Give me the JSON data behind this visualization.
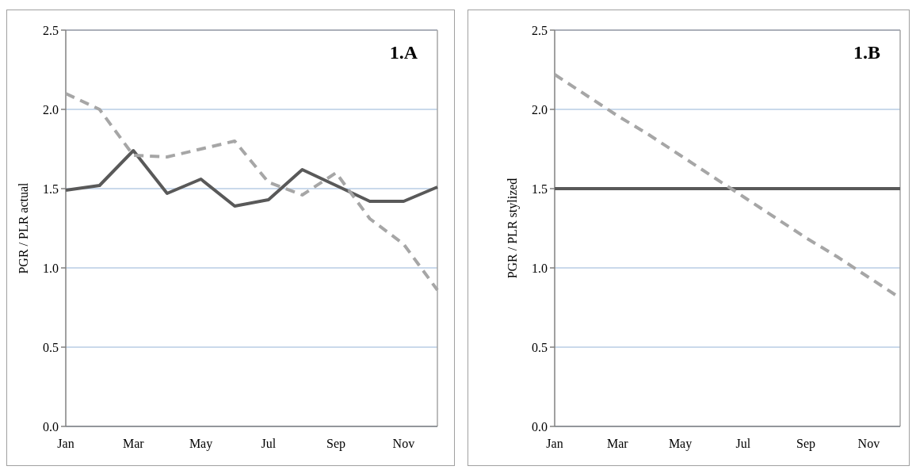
{
  "chart_data": [
    {
      "type": "line",
      "title": "1.A",
      "ylabel": "PGR / PLR actual",
      "categories": [
        "Jan",
        null,
        "Mar",
        null,
        "May",
        null,
        "Jul",
        null,
        "Sep",
        null,
        "Nov",
        null
      ],
      "series": [
        {
          "color": "#595959",
          "line_style": "solid",
          "values": [
            1.49,
            1.52,
            1.74,
            1.47,
            1.56,
            1.39,
            1.43,
            1.62,
            1.52,
            1.42,
            1.42,
            1.51
          ]
        },
        {
          "color": "#a6a6a6",
          "line_style": "dashed",
          "values": [
            2.1,
            2.0,
            1.71,
            1.7,
            1.75,
            1.8,
            1.54,
            1.46,
            1.6,
            1.31,
            1.15,
            0.86
          ]
        }
      ],
      "ylim": [
        0,
        2.5
      ],
      "yticks": [
        {
          "value": 0,
          "label": "0.0"
        },
        0.5,
        {
          "value": 1,
          "label": "1.0"
        },
        1.5,
        {
          "value": 2,
          "label": "2.0"
        },
        2.5
      ],
      "grid": "y"
    },
    {
      "type": "line",
      "title": "1.B",
      "ylabel": "PGR / PLR stylized",
      "categories": [
        "Jan",
        null,
        "Mar",
        null,
        "May",
        null,
        "Jul",
        null,
        "Sep",
        null,
        "Nov",
        null
      ],
      "series": [
        {
          "color": "#595959",
          "line_style": "solid",
          "values": [
            1.5,
            1.5,
            1.5,
            1.5,
            1.5,
            1.5,
            1.5,
            1.5,
            1.5,
            1.5,
            1.5,
            1.5
          ]
        },
        {
          "color": "#a6a6a6",
          "line_style": "dashed",
          "values": [
            2.22,
            2.09,
            1.96,
            1.84,
            1.71,
            1.58,
            1.45,
            1.32,
            1.19,
            1.07,
            0.94,
            0.81
          ]
        }
      ],
      "ylim": [
        0,
        2.5
      ],
      "yticks": [
        {
          "value": 0,
          "label": "0.0"
        },
        0.5,
        {
          "value": 1,
          "label": "1.0"
        },
        1.5,
        {
          "value": 2,
          "label": "2.0"
        },
        2.5
      ],
      "grid": "y"
    }
  ]
}
